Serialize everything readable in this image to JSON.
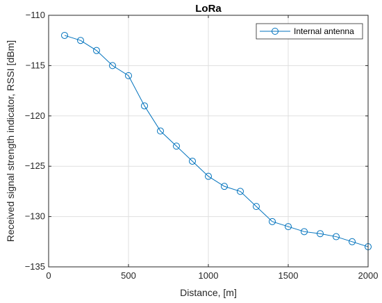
{
  "chart_data": {
    "type": "line",
    "title": "LoRa",
    "xlabel": "Distance, [m]",
    "ylabel": "Received signal strength indicator, RSSI [dBm]",
    "xlim": [
      0,
      2000
    ],
    "ylim": [
      -135,
      -110
    ],
    "xticks": [
      0,
      500,
      1000,
      1500,
      2000
    ],
    "yticks": [
      -135,
      -130,
      -125,
      -120,
      -115,
      -110
    ],
    "xtick_labels": [
      "0",
      "500",
      "1000",
      "1500",
      "2000"
    ],
    "ytick_labels": [
      "−135",
      "−130",
      "−125",
      "−120",
      "−115",
      "−110"
    ],
    "grid": true,
    "legend_position": "top-right",
    "series": [
      {
        "name": "Internal antenna",
        "color": "#0072BD",
        "marker": "circle",
        "x": [
          100,
          200,
          300,
          400,
          500,
          600,
          700,
          800,
          900,
          1000,
          1100,
          1200,
          1300,
          1400,
          1500,
          1600,
          1700,
          1800,
          1900,
          2000
        ],
        "y": [
          -112,
          -112.5,
          -113.5,
          -115,
          -116,
          -119,
          -121.5,
          -123,
          -124.5,
          -126,
          -127,
          -127.5,
          -129,
          -130.5,
          -131,
          -131.5,
          -131.7,
          -132,
          -132.5,
          -133
        ]
      }
    ]
  }
}
